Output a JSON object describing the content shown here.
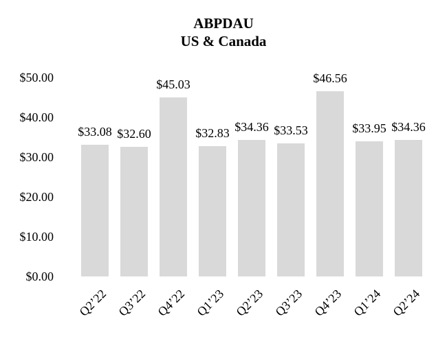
{
  "chart_data": {
    "type": "bar",
    "title": "ABPDAU",
    "subtitle": "US & Canada",
    "categories": [
      "Q2’22",
      "Q3’22",
      "Q4’22",
      "Q1’23",
      "Q2’23",
      "Q3’23",
      "Q4’23",
      "Q1’24",
      "Q2’24"
    ],
    "values": [
      33.08,
      32.6,
      45.03,
      32.83,
      34.36,
      33.53,
      46.56,
      33.95,
      34.36
    ],
    "value_labels": [
      "$33.08",
      "$32.60",
      "$45.03",
      "$32.83",
      "$34.36",
      "$33.53",
      "$46.56",
      "$33.95",
      "$34.36"
    ],
    "y_ticks": [
      "$0.00",
      "$10.00",
      "$20.00",
      "$30.00",
      "$40.00",
      "$50.00"
    ],
    "ylim": [
      0,
      50
    ],
    "y_tick_step": 10,
    "xlabel": "",
    "ylabel": "",
    "grid": false,
    "legend": false,
    "bar_color": "#d9d9d9",
    "text_color": "#000000",
    "background_color": "#ffffff"
  }
}
